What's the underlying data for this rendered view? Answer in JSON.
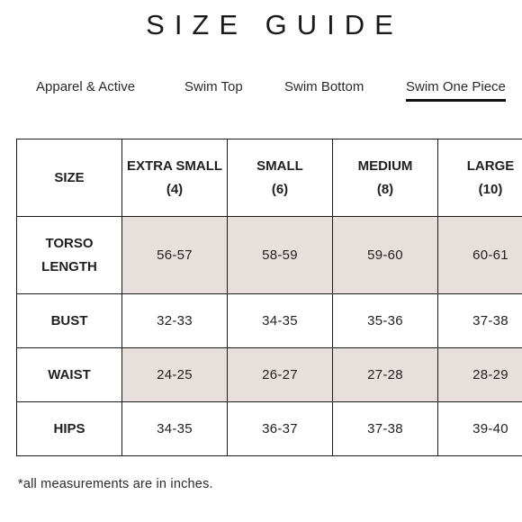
{
  "title": "SIZE GUIDE",
  "tabs": [
    {
      "label": "Apparel & Active"
    },
    {
      "label": "Swim Top"
    },
    {
      "label": "Swim Bottom"
    },
    {
      "label": "Swim One Piece"
    }
  ],
  "table": {
    "headers": [
      {
        "label": "SIZE"
      },
      {
        "line1": "EXTRA SMALL",
        "line2": "(4)"
      },
      {
        "line1": "SMALL",
        "line2": "(6)"
      },
      {
        "line1": "MEDIUM",
        "line2": "(8)"
      },
      {
        "line1": "LARGE",
        "line2": "(10)"
      }
    ],
    "rows": [
      {
        "line1": "TORSO",
        "line2": "LENGTH",
        "values": [
          "56-57",
          "58-59",
          "59-60",
          "60-61"
        ]
      },
      {
        "label": "BUST",
        "values": [
          "32-33",
          "34-35",
          "35-36",
          "37-38"
        ]
      },
      {
        "label": "WAIST",
        "values": [
          "24-25",
          "26-27",
          "27-28",
          "28-29"
        ]
      },
      {
        "label": "HIPS",
        "values": [
          "34-35",
          "36-37",
          "37-38",
          "39-40"
        ]
      }
    ]
  },
  "footnote": "*all measurements are in inches.",
  "colors": {
    "shade": "#e7dfdb",
    "text": "#1a1a1a"
  }
}
